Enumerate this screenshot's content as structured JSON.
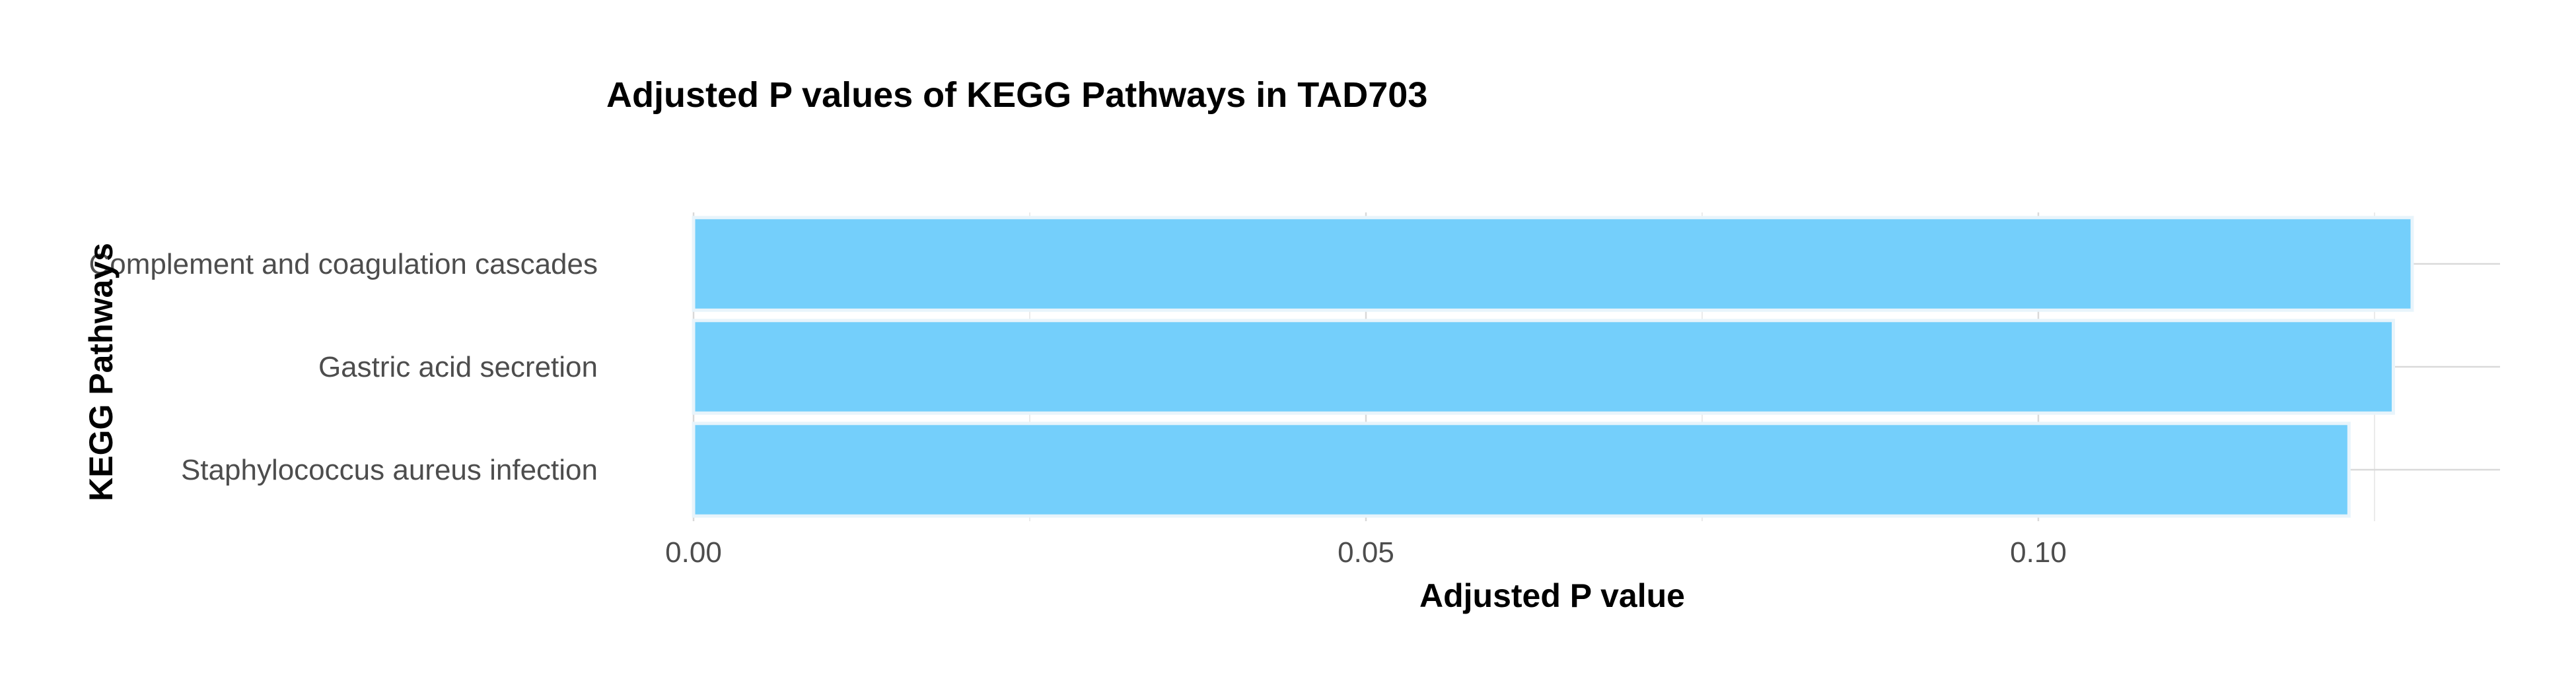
{
  "chart_data": {
    "type": "bar",
    "orientation": "horizontal",
    "title": "Adjusted P values of KEGG Pathways in TAD703",
    "xlabel": "Adjusted P value",
    "ylabel": "KEGG Pathways",
    "categories": [
      "Complement and coagulation cascades",
      "Gastric acid secretion",
      "Staphylococcus aureus infection"
    ],
    "values": [
      0.1278,
      0.1264,
      0.1231
    ],
    "xlim": [
      0,
      0.135
    ],
    "x_ticks": [
      0.0,
      0.05,
      0.1
    ],
    "x_tick_labels": [
      "0.00",
      "0.05",
      "0.10"
    ],
    "grid": true,
    "legend": "none",
    "colors": {
      "bar_fill": "#74CFFB",
      "bar_stroke": "#E8F4FB",
      "grid_major": "#D9D9D9",
      "grid_minor": "#EBEBEB",
      "tick_text": "#4D4D4D",
      "title_text": "#000000"
    }
  }
}
